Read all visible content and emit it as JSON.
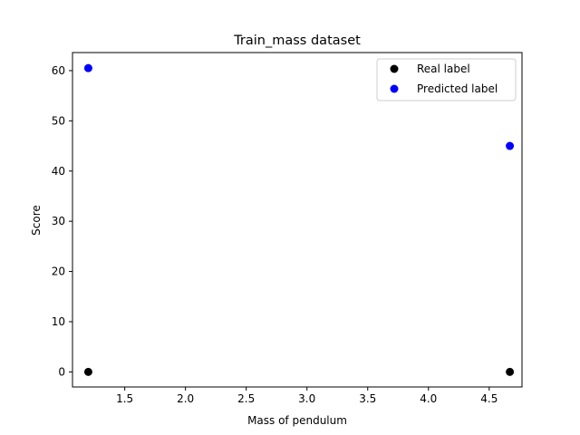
{
  "chart_data": {
    "type": "scatter",
    "title": "Train_mass dataset",
    "xlabel": "Mass of pendulum",
    "ylabel": "Score",
    "xlim": [
      1.07,
      4.77
    ],
    "ylim": [
      -3.0,
      63.6
    ],
    "xticks": [
      1.5,
      2.0,
      2.5,
      3.0,
      3.5,
      4.0,
      4.5
    ],
    "xtick_labels": [
      "1.5",
      "2.0",
      "2.5",
      "3.0",
      "3.5",
      "4.0",
      "4.5"
    ],
    "yticks": [
      0,
      10,
      20,
      30,
      40,
      50,
      60
    ],
    "ytick_labels": [
      "0",
      "10",
      "20",
      "30",
      "40",
      "50",
      "60"
    ],
    "grid": false,
    "legend_position": "top-right",
    "series": [
      {
        "name": "Real label",
        "color": "#000000",
        "points": [
          {
            "x": 1.2,
            "y": 0
          },
          {
            "x": 4.67,
            "y": 0
          }
        ]
      },
      {
        "name": "Predicted label",
        "color": "#0000ff",
        "points": [
          {
            "x": 1.2,
            "y": 60.5
          },
          {
            "x": 4.67,
            "y": 45.0
          }
        ]
      }
    ]
  }
}
